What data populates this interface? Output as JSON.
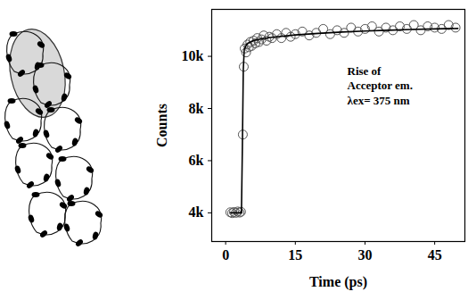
{
  "chart_data": {
    "type": "scatter",
    "x_label": "Time (ps)",
    "y_label": "Counts",
    "annotation": [
      "Rise of",
      "Acceptor em.",
      "λex= 375 nm"
    ],
    "xlim": [
      -3,
      51.5
    ],
    "xticks": [
      0,
      15,
      30,
      45
    ],
    "ylim": [
      2900,
      11800
    ],
    "yticks": [
      {
        "value": 4000,
        "label": "4k"
      },
      {
        "value": 6000,
        "label": "6k"
      },
      {
        "value": 8000,
        "label": "8k"
      },
      {
        "value": 10000,
        "label": "10k"
      }
    ],
    "grid": false,
    "series": [
      {
        "type": "scatter",
        "marker": "open circle",
        "color": "#555555",
        "x": [
          1.0,
          1.4,
          1.8,
          2.2,
          2.6,
          3.0,
          3.3,
          3.7,
          3.9,
          4.1,
          4.4,
          4.7,
          5.0,
          5.3,
          5.6,
          6.0,
          6.4,
          6.8,
          7.2,
          7.7,
          8.2,
          8.8,
          9.4,
          10,
          11,
          12,
          13,
          14,
          15,
          16.5,
          18,
          19.5,
          21,
          22.5,
          24,
          25.5,
          27,
          28.5,
          30,
          31.5,
          33,
          34.5,
          36,
          37.5,
          39,
          40.5,
          42,
          43.5,
          45,
          46.5,
          48,
          49.5
        ],
        "values": [
          4020,
          3990,
          4030,
          4000,
          4050,
          4010,
          4040,
          7000,
          9600,
          10300,
          10150,
          10450,
          10350,
          10550,
          10400,
          10600,
          10500,
          10700,
          10550,
          10650,
          10800,
          10600,
          10750,
          10700,
          10850,
          10700,
          10900,
          10750,
          10850,
          10950,
          10800,
          10900,
          11050,
          10850,
          11000,
          10900,
          11100,
          10950,
          11050,
          11150,
          10950,
          11100,
          11000,
          11150,
          11050,
          11200,
          11000,
          11150,
          11100,
          11050,
          11200,
          11100
        ]
      },
      {
        "type": "line",
        "line_style": "solid",
        "color": "#000000",
        "x": [
          1,
          3.4,
          3.6,
          3.8,
          4.0,
          4.5,
          5,
          6,
          8,
          10,
          15,
          20,
          25,
          30,
          35,
          40,
          45,
          50
        ],
        "values": [
          4000,
          4000,
          6500,
          9500,
          10250,
          10450,
          10520,
          10600,
          10680,
          10730,
          10820,
          10880,
          10930,
          10970,
          11000,
          11030,
          11050,
          11070
        ]
      }
    ]
  }
}
